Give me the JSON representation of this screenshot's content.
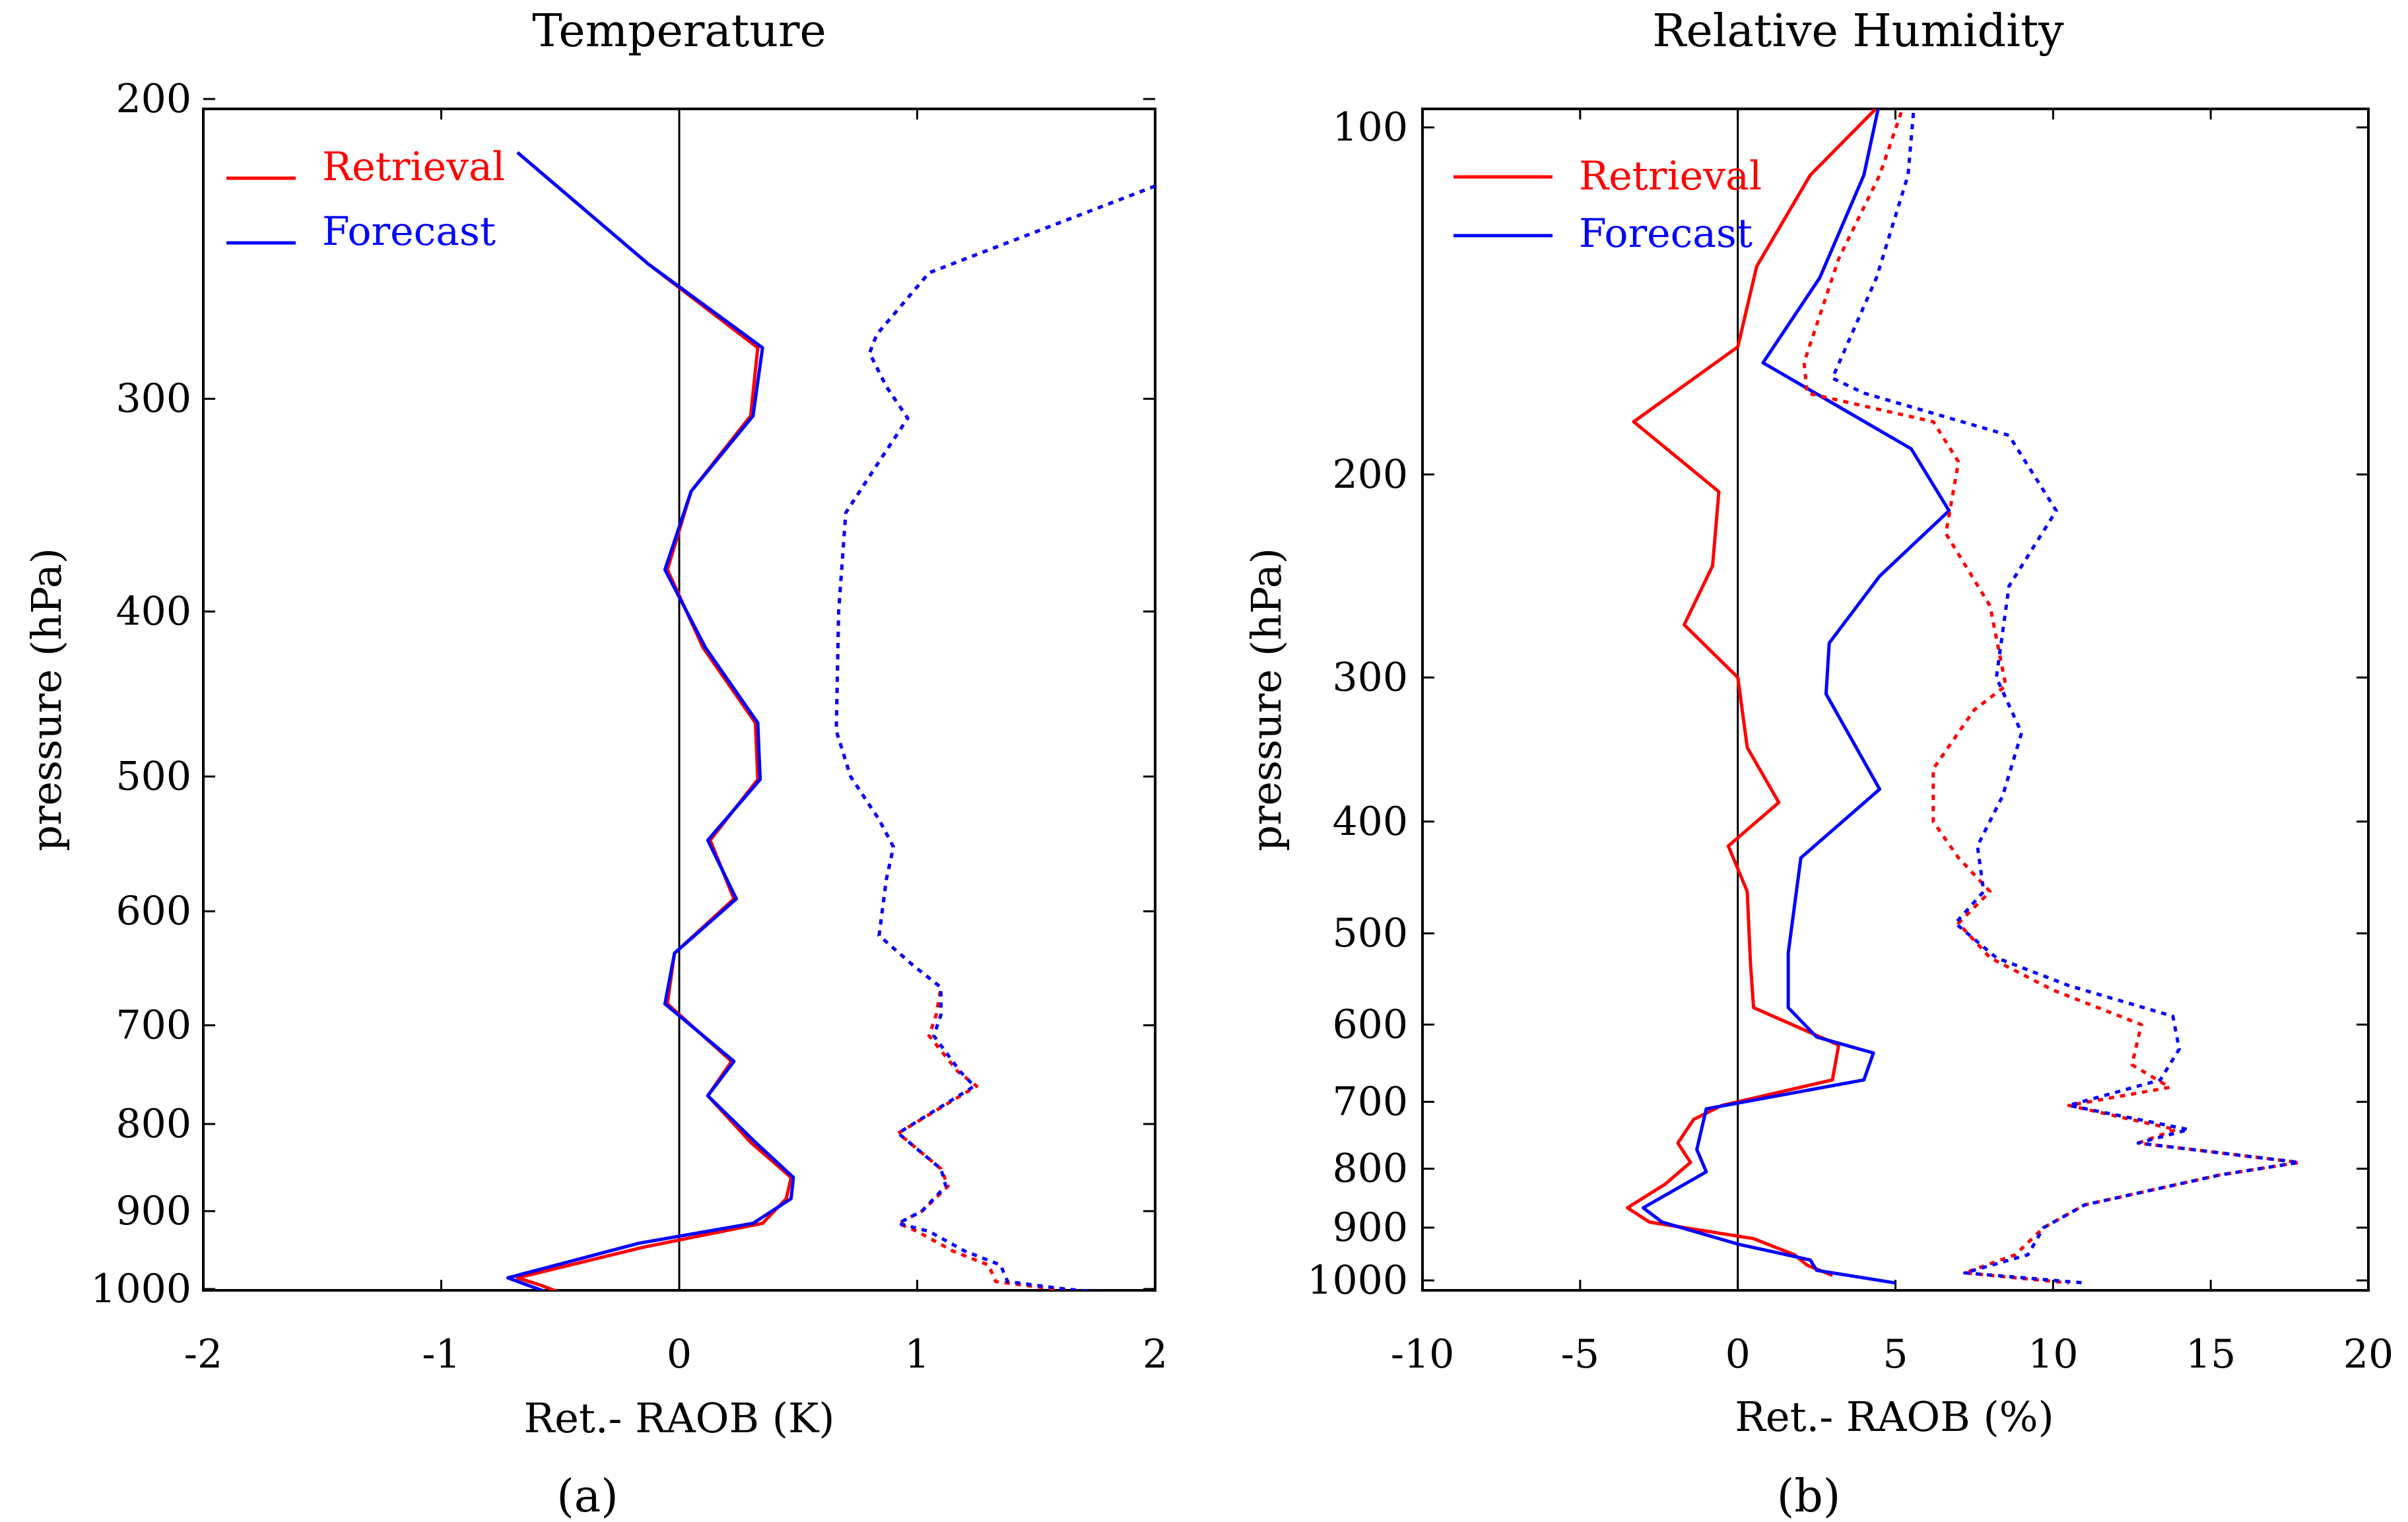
{
  "chart_data": [
    {
      "type": "line",
      "panel_label": "(a)",
      "title": "Temperature",
      "xlabel": "Ret.- RAOB (K)",
      "ylabel": "pressure (hPa)",
      "xlim": [
        -2,
        2
      ],
      "ylim": [
        1000,
        200
      ],
      "y_scale": "log",
      "xticks": [
        "-2",
        "-1",
        "0",
        "1",
        "2"
      ],
      "yticks": [
        "200",
        "300",
        "400",
        "500",
        "600",
        "700",
        "800",
        "900",
        "1000"
      ],
      "legend": {
        "position": "top-left",
        "entries": [
          {
            "name": "Retrieval",
            "color": "#ff0000"
          },
          {
            "name": "Forecast",
            "color": "#0000ff"
          }
        ]
      },
      "series": [
        {
          "name": "Retrieval bias",
          "color": "#ff0000",
          "style": "solid",
          "points": [
            [
              -0.68,
              215
            ],
            [
              -0.13,
              250
            ],
            [
              0.33,
              280
            ],
            [
              0.3,
              307
            ],
            [
              0.05,
              340
            ],
            [
              -0.05,
              378
            ],
            [
              0.1,
              420
            ],
            [
              0.32,
              465
            ],
            [
              0.33,
              502
            ],
            [
              0.13,
              545
            ],
            [
              0.23,
              590
            ],
            [
              -0.02,
              635
            ],
            [
              -0.05,
              680
            ],
            [
              0.22,
              735
            ],
            [
              0.12,
              770
            ],
            [
              0.3,
              820
            ],
            [
              0.47,
              860
            ],
            [
              0.45,
              885
            ],
            [
              0.35,
              915
            ],
            [
              -0.15,
              945
            ],
            [
              -0.68,
              985
            ],
            [
              -0.58,
              995
            ],
            [
              -0.5,
              1005
            ]
          ]
        },
        {
          "name": "Forecast bias",
          "color": "#0000ff",
          "style": "solid",
          "points": [
            [
              -0.68,
              215
            ],
            [
              -0.13,
              250
            ],
            [
              0.35,
              280
            ],
            [
              0.31,
              307
            ],
            [
              0.05,
              340
            ],
            [
              -0.06,
              378
            ],
            [
              0.11,
              420
            ],
            [
              0.33,
              465
            ],
            [
              0.34,
              502
            ],
            [
              0.12,
              545
            ],
            [
              0.24,
              590
            ],
            [
              -0.02,
              635
            ],
            [
              -0.06,
              680
            ],
            [
              0.23,
              735
            ],
            [
              0.12,
              770
            ],
            [
              0.32,
              820
            ],
            [
              0.48,
              860
            ],
            [
              0.47,
              885
            ],
            [
              0.31,
              915
            ],
            [
              -0.17,
              940
            ],
            [
              -0.72,
              985
            ],
            [
              -0.55,
              1005
            ]
          ]
        },
        {
          "name": "Retrieval std dev",
          "color": "#ff0000",
          "style": "dotted",
          "points": [
            [
              2.0,
              225
            ],
            [
              1.05,
              253
            ],
            [
              0.83,
              275
            ],
            [
              0.8,
              282
            ],
            [
              0.87,
              295
            ],
            [
              0.96,
              308
            ],
            [
              0.85,
              325
            ],
            [
              0.7,
              350
            ],
            [
              0.67,
              400
            ],
            [
              0.66,
              470
            ],
            [
              0.72,
              500
            ],
            [
              0.84,
              530
            ],
            [
              0.9,
              550
            ],
            [
              0.87,
              575
            ],
            [
              0.84,
              620
            ],
            [
              0.98,
              645
            ],
            [
              1.1,
              665
            ],
            [
              1.08,
              690
            ],
            [
              1.05,
              710
            ],
            [
              1.17,
              745
            ],
            [
              1.25,
              760
            ],
            [
              0.92,
              810
            ],
            [
              1.1,
              850
            ],
            [
              1.13,
              870
            ],
            [
              1.02,
              900
            ],
            [
              0.92,
              915
            ],
            [
              1.0,
              925
            ],
            [
              1.15,
              950
            ],
            [
              1.3,
              968
            ],
            [
              1.33,
              990
            ],
            [
              1.58,
              1000
            ],
            [
              1.78,
              1005
            ]
          ]
        },
        {
          "name": "Forecast std dev",
          "color": "#0000ff",
          "style": "dotted",
          "points": [
            [
              2.0,
              225
            ],
            [
              1.05,
              253
            ],
            [
              0.83,
              275
            ],
            [
              0.8,
              282
            ],
            [
              0.87,
              295
            ],
            [
              0.96,
              308
            ],
            [
              0.85,
              325
            ],
            [
              0.7,
              350
            ],
            [
              0.67,
              400
            ],
            [
              0.66,
              470
            ],
            [
              0.72,
              500
            ],
            [
              0.84,
              530
            ],
            [
              0.9,
              550
            ],
            [
              0.87,
              575
            ],
            [
              0.84,
              620
            ],
            [
              0.98,
              645
            ],
            [
              1.1,
              665
            ],
            [
              1.1,
              690
            ],
            [
              1.07,
              710
            ],
            [
              1.18,
              745
            ],
            [
              1.24,
              760
            ],
            [
              0.92,
              810
            ],
            [
              1.1,
              850
            ],
            [
              1.12,
              870
            ],
            [
              1.02,
              900
            ],
            [
              0.92,
              915
            ],
            [
              1.05,
              925
            ],
            [
              1.2,
              950
            ],
            [
              1.35,
              968
            ],
            [
              1.38,
              990
            ],
            [
              1.62,
              1000
            ],
            [
              1.8,
              1005
            ]
          ]
        }
      ]
    },
    {
      "type": "line",
      "panel_label": "(b)",
      "title": "Relative Humidity",
      "xlabel": "Ret.- RAOB (%)",
      "ylabel": "pressure (hPa)",
      "xlim": [
        -10,
        20
      ],
      "ylim": [
        1000,
        100
      ],
      "y_scale": "log",
      "xticks": [
        "-10",
        "-5",
        "0",
        "5",
        "10",
        "15",
        "20"
      ],
      "yticks": [
        "100",
        "200",
        "300",
        "400",
        "500",
        "600",
        "700",
        "800",
        "900",
        "1000"
      ],
      "legend": {
        "position": "top-left",
        "entries": [
          {
            "name": "Retrieval",
            "color": "#ff0000"
          },
          {
            "name": "Forecast",
            "color": "#0000ff"
          }
        ]
      },
      "series": [
        {
          "name": "Retrieval bias",
          "color": "#ff0000",
          "style": "solid",
          "points": [
            [
              4.6,
              95
            ],
            [
              2.3,
              110
            ],
            [
              0.6,
              132
            ],
            [
              0.0,
              155
            ],
            [
              -3.3,
              180
            ],
            [
              -0.6,
              207
            ],
            [
              -0.8,
              240
            ],
            [
              -1.7,
              270
            ],
            [
              0.0,
              300
            ],
            [
              0.3,
              345
            ],
            [
              1.3,
              385
            ],
            [
              -0.3,
              420
            ],
            [
              0.3,
              460
            ],
            [
              0.4,
              530
            ],
            [
              0.5,
              580
            ],
            [
              3.2,
              625
            ],
            [
              3.0,
              670
            ],
            [
              -0.5,
              705
            ],
            [
              -1.4,
              725
            ],
            [
              -1.9,
              760
            ],
            [
              -1.5,
              790
            ],
            [
              -2.3,
              825
            ],
            [
              -3.5,
              865
            ],
            [
              -2.8,
              890
            ],
            [
              0.5,
              920
            ],
            [
              1.8,
              950
            ],
            [
              2.2,
              970
            ],
            [
              3.0,
              990
            ]
          ]
        },
        {
          "name": "Forecast bias",
          "color": "#0000ff",
          "style": "solid",
          "points": [
            [
              4.5,
              95
            ],
            [
              4.0,
              110
            ],
            [
              2.6,
              135
            ],
            [
              0.8,
              160
            ],
            [
              5.5,
              190
            ],
            [
              6.7,
              215
            ],
            [
              4.5,
              245
            ],
            [
              2.9,
              280
            ],
            [
              2.8,
              310
            ],
            [
              4.5,
              375
            ],
            [
              2.0,
              430
            ],
            [
              1.6,
              520
            ],
            [
              1.6,
              580
            ],
            [
              2.5,
              615
            ],
            [
              4.3,
              635
            ],
            [
              4.0,
              670
            ],
            [
              -1.0,
              710
            ],
            [
              -1.3,
              770
            ],
            [
              -1.0,
              805
            ],
            [
              -3.0,
              865
            ],
            [
              -2.4,
              890
            ],
            [
              0.0,
              930
            ],
            [
              2.3,
              960
            ],
            [
              2.5,
              980
            ],
            [
              5.0,
              1005
            ]
          ]
        },
        {
          "name": "Retrieval std dev",
          "color": "#ff0000",
          "style": "dotted",
          "points": [
            [
              5.3,
              95
            ],
            [
              4.5,
              110
            ],
            [
              3.2,
              130
            ],
            [
              2.1,
              160
            ],
            [
              2.2,
              170
            ],
            [
              6.2,
              180
            ],
            [
              7.0,
              195
            ],
            [
              6.6,
              225
            ],
            [
              8.0,
              260
            ],
            [
              8.5,
              305
            ],
            [
              7.5,
              320
            ],
            [
              6.2,
              360
            ],
            [
              6.2,
              400
            ],
            [
              7.0,
              430
            ],
            [
              8.0,
              460
            ],
            [
              7.0,
              490
            ],
            [
              8.0,
              525
            ],
            [
              10.0,
              560
            ],
            [
              12.8,
              600
            ],
            [
              12.5,
              650
            ],
            [
              13.7,
              680
            ],
            [
              10.5,
              705
            ],
            [
              13.9,
              740
            ],
            [
              12.7,
              760
            ],
            [
              17.8,
              790
            ],
            [
              15.3,
              810
            ],
            [
              11.0,
              860
            ],
            [
              9.7,
              900
            ],
            [
              8.8,
              950
            ],
            [
              7.2,
              985
            ],
            [
              10.5,
              1005
            ]
          ]
        },
        {
          "name": "Forecast std dev",
          "color": "#0000ff",
          "style": "dotted",
          "points": [
            [
              5.6,
              95
            ],
            [
              5.4,
              110
            ],
            [
              4.4,
              135
            ],
            [
              3.0,
              165
            ],
            [
              4.0,
              170
            ],
            [
              8.6,
              185
            ],
            [
              10.1,
              215
            ],
            [
              8.6,
              250
            ],
            [
              8.2,
              300
            ],
            [
              9.0,
              335
            ],
            [
              8.4,
              380
            ],
            [
              7.6,
              420
            ],
            [
              7.8,
              460
            ],
            [
              6.9,
              490
            ],
            [
              8.2,
              525
            ],
            [
              10.5,
              555
            ],
            [
              13.8,
              590
            ],
            [
              14.0,
              630
            ],
            [
              13.4,
              670
            ],
            [
              10.5,
              705
            ],
            [
              14.3,
              740
            ],
            [
              12.7,
              760
            ],
            [
              17.8,
              790
            ],
            [
              15.3,
              810
            ],
            [
              11.0,
              860
            ],
            [
              9.7,
              900
            ],
            [
              9.2,
              950
            ],
            [
              7.2,
              985
            ],
            [
              11.0,
              1005
            ]
          ]
        }
      ]
    }
  ]
}
